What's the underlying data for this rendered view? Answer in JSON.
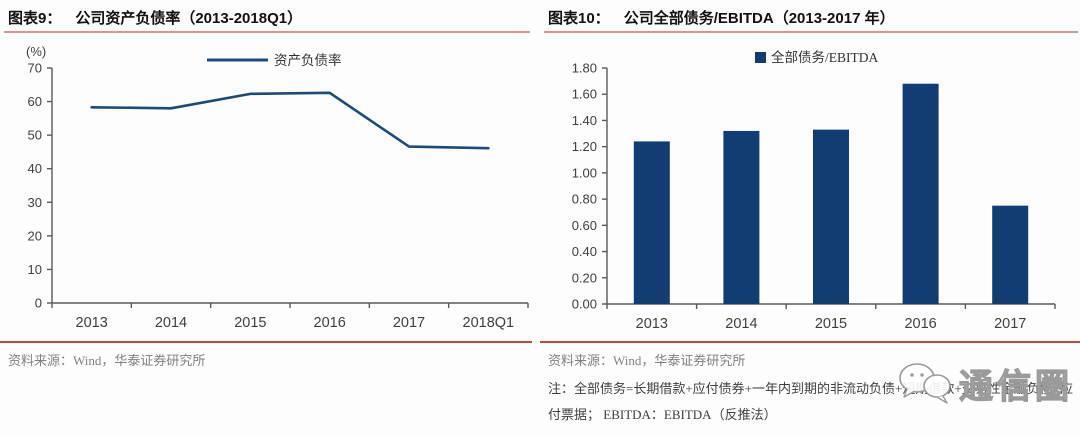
{
  "figures": [
    {
      "label": "图表9：",
      "title": "公司资产负债率（2013-2018Q1）",
      "unit": "(%)",
      "source": "资料来源：Wind，华泰证券研究所"
    },
    {
      "label": "图表10：",
      "title": "公司全部债务/EBITDA（2013-2017 年）",
      "source": "资料来源：Wind，华泰证券研究所",
      "note": "注：全部债务=长期借款+应付债券+一年内到期的非流动负债+短期借款+交易性金融负债+应付票据；  EBITDA：EBITDA（反推法）"
    }
  ],
  "chart_data": [
    {
      "type": "line",
      "title": "图表9：公司资产负债率（2013-2018Q1）",
      "categories": [
        "2013",
        "2014",
        "2015",
        "2016",
        "2017",
        "2018Q1"
      ],
      "series": [
        {
          "name": "资产负债率",
          "values": [
            58.3,
            58.0,
            62.3,
            62.6,
            46.6,
            46.1
          ]
        }
      ],
      "xlabel": "",
      "ylabel": "(%)",
      "ylim": [
        0,
        70
      ],
      "ytick_step": 10,
      "ytick_decimals": 0,
      "grid": false,
      "legend_position": "top"
    },
    {
      "type": "bar",
      "title": "图表10：公司全部债务/EBITDA（2013-2017 年）",
      "categories": [
        "2013",
        "2014",
        "2015",
        "2016",
        "2017"
      ],
      "series": [
        {
          "name": "全部债务/EBITDA",
          "values": [
            1.24,
            1.32,
            1.33,
            1.68,
            0.75
          ]
        }
      ],
      "xlabel": "",
      "ylabel": "",
      "ylim": [
        0,
        1.8
      ],
      "ytick_step": 0.2,
      "ytick_decimals": 2,
      "grid": false,
      "legend_position": "top"
    }
  ],
  "watermark": {
    "text": "通信圈",
    "icon": "wechat-bubbles-icon"
  },
  "colors": {
    "line_series": "#1e4a7a",
    "bar_series": "#123c74",
    "axis": "#595959",
    "tick_text": "#404040",
    "title_underline": "#d49690",
    "separator": "#c24641",
    "source_text": "#808080",
    "watermark": "#9a9a9a"
  }
}
